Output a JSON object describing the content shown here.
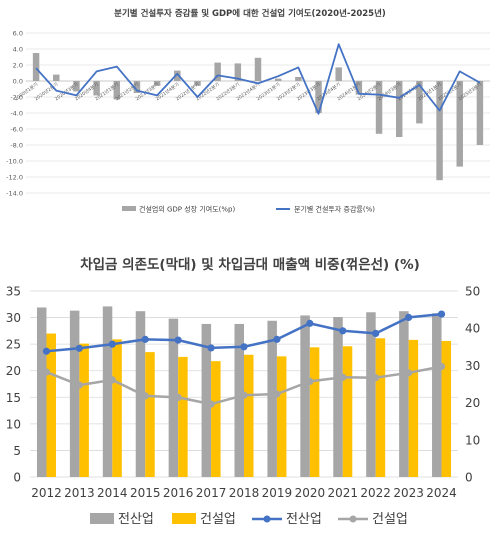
{
  "chart_data": [
    {
      "type": "bar+line",
      "title": "분기별 건설투자 증감률 및 GDP에 대한 건설업 기여도(2020년-2025년)",
      "categories": [
        "2020.1Q",
        "2020.2Q",
        "2020.3Q",
        "2020.4Q",
        "2021.1Q",
        "2021.2Q",
        "2021.3Q",
        "2021.4Q",
        "2022.1Q",
        "2022.2Q",
        "2022.3Q",
        "2022.4Q",
        "2023.1Q",
        "2023.2Q",
        "2023.3Q",
        "2023.4Q",
        "2024.1Q",
        "2024.2Q",
        "2024.3Q",
        "2024.4Q",
        "2025.1Q",
        "2025.2Q",
        "2025.3Q"
      ],
      "category_labels": [
        "2020년1분기",
        "2020년2분기",
        "2020년3분기",
        "2020년4분기",
        "2021년1분기",
        "2021년2분기",
        "2021년3분기",
        "2021년4분기",
        "2022년1분기",
        "2022년2분기",
        "2022년3분기",
        "2022년4분기",
        "2023년1분기",
        "2023년2분기",
        "2023년3분기",
        "2023년4분기",
        "2024년1분기",
        "2024년2분기",
        "2024년3분기",
        "2024년4분기",
        "2025년1분기",
        "2025년2분기",
        "2025년3분기"
      ],
      "ylim": [
        -14.0,
        6.0
      ],
      "yticks": [
        "6.0",
        "4.0",
        "2.0",
        "0.0",
        "-2.0",
        "-4.0",
        "-6.0",
        "-8.0",
        "-10.0",
        "-12.0",
        "-14.0"
      ],
      "grid": true,
      "legend_position": "bottom",
      "series": [
        {
          "name": "건설업의 GDP 성장 기여도(%p)",
          "kind": "bar",
          "color": "#a6a6a6",
          "values": [
            3.5,
            0.8,
            -1.3,
            -1.8,
            -2.3,
            -1.5,
            -0.6,
            1.3,
            -0.6,
            2.3,
            2.2,
            2.9,
            0.3,
            0.5,
            -4.0,
            1.7,
            -1.7,
            -6.6,
            -7.0,
            -5.3,
            -12.4,
            -10.7,
            -8.0
          ]
        },
        {
          "name": "분기별 건설투자 증감률(%)",
          "kind": "line",
          "color": "#4472c4",
          "values": [
            1.6,
            -1.2,
            -1.8,
            1.2,
            1.8,
            -1.2,
            -1.8,
            0.9,
            -2.0,
            0.7,
            0.3,
            -0.3,
            0.6,
            1.7,
            -4.1,
            4.6,
            -1.6,
            -1.7,
            -2.1,
            -0.5,
            -3.7,
            1.2,
            -0.2
          ]
        }
      ]
    },
    {
      "type": "bar+line",
      "title": "차입금 의존도(막대) 및 차입금대 매출액 비중(꺾은선) (%)",
      "categories": [
        "2012",
        "2013",
        "2014",
        "2015",
        "2016",
        "2017",
        "2018",
        "2019",
        "2020",
        "2021",
        "2022",
        "2023",
        "2024"
      ],
      "y_left": {
        "lim": [
          0,
          35
        ],
        "ticks": [
          "0",
          "5",
          "10",
          "15",
          "20",
          "25",
          "30",
          "35"
        ]
      },
      "y_right": {
        "lim": [
          0,
          50
        ],
        "ticks": [
          "0",
          "10",
          "20",
          "30",
          "40",
          "50"
        ]
      },
      "grid": true,
      "legend_position": "bottom",
      "series": [
        {
          "name": "전산업",
          "kind": "bar",
          "axis": "left",
          "color": "#a6a6a6",
          "values": [
            31.9,
            31.3,
            32.1,
            31.2,
            29.8,
            28.8,
            28.8,
            29.4,
            30.4,
            30.1,
            31.0,
            31.2,
            30.8
          ]
        },
        {
          "name": "건설업",
          "kind": "bar",
          "axis": "left",
          "color": "#ffc000",
          "values": [
            27.0,
            25.1,
            25.9,
            23.5,
            22.6,
            21.8,
            23.0,
            22.7,
            24.4,
            24.6,
            26.1,
            25.8,
            25.6
          ]
        },
        {
          "name": "전산업",
          "kind": "line",
          "axis": "right",
          "color": "#4472c4",
          "values": [
            33.8,
            34.6,
            35.7,
            37.0,
            36.8,
            34.7,
            35.0,
            37.0,
            41.3,
            39.3,
            38.6,
            42.9,
            43.8
          ]
        },
        {
          "name": "건설업",
          "kind": "line",
          "axis": "right",
          "color": "#a6a6a6",
          "values": [
            28.2,
            24.7,
            26.1,
            21.8,
            21.4,
            19.6,
            22.0,
            22.3,
            25.7,
            26.8,
            26.7,
            28.0,
            29.7
          ]
        }
      ]
    }
  ]
}
